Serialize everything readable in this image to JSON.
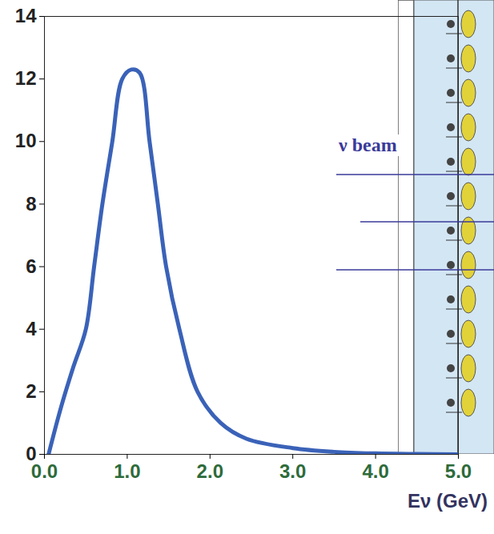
{
  "chart_data": {
    "type": "line",
    "x_label": "Eν (GeV)",
    "x": [
      0.05,
      0.2,
      0.35,
      0.5,
      0.6,
      0.7,
      0.82,
      0.94,
      1.05,
      1.15,
      1.27,
      1.37,
      1.47,
      1.63,
      1.85,
      2.13,
      2.44,
      3.0,
      3.5,
      4.0,
      4.5,
      5.0
    ],
    "values": [
      0,
      1.5,
      2.8,
      4,
      6,
      8,
      10,
      12,
      12.3,
      12.2,
      10,
      8,
      6,
      4,
      2,
      1,
      0.5,
      0.2,
      0.08,
      0.03,
      0.01,
      0
    ],
    "color": "#3a62b8",
    "xlim": [
      0,
      5
    ],
    "xticks": [
      0,
      1,
      2,
      3,
      4,
      5
    ],
    "ylim": [
      0,
      14
    ],
    "yticks": [
      0,
      2,
      4,
      6,
      8,
      10,
      12,
      14
    ],
    "grid": false,
    "annotations": [
      {
        "text": "ν beam"
      }
    ]
  }
}
